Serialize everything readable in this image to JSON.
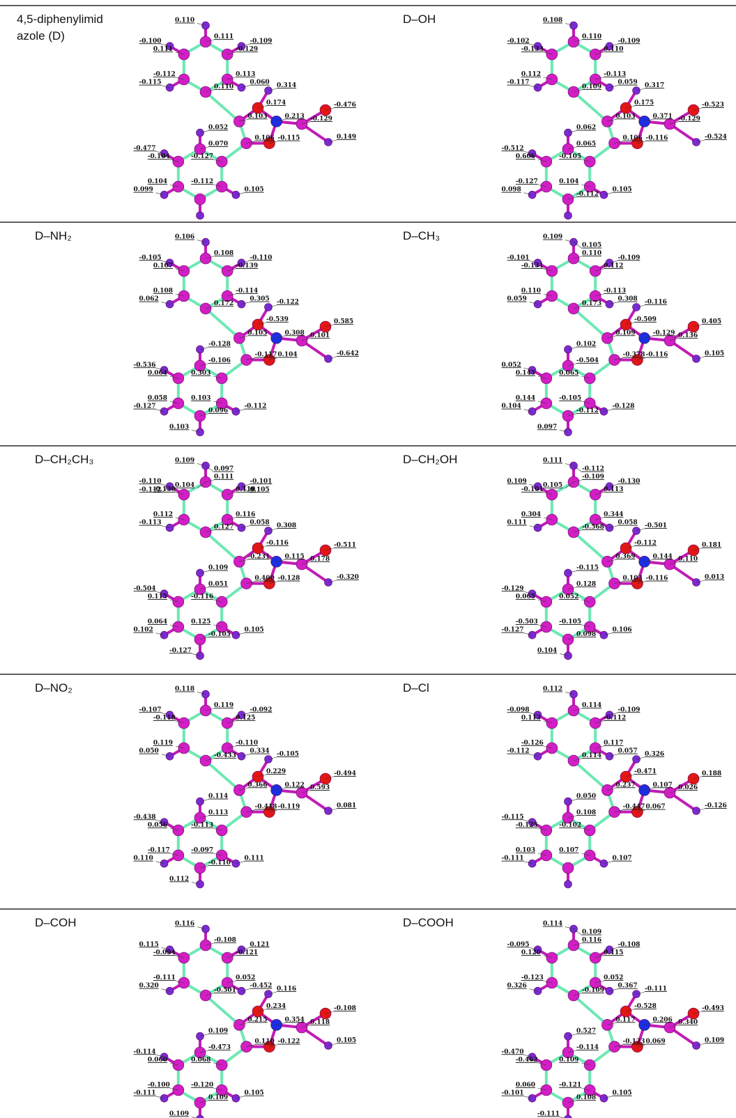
{
  "panels": [
    {
      "title": "4,5-diphenylimidazole (D)",
      "charges": [
        "0.110",
        "0.111",
        "-0.100",
        "-0.109",
        "0.111",
        "-0.129",
        "-0.112",
        "0.113",
        "-0.115",
        "0.060",
        "0.314",
        "0.110",
        "0.174",
        "-0.476",
        "0.103",
        "0.213",
        "-0.129",
        "0.052",
        "0.149",
        "0.106",
        "-0.115",
        "0.070",
        "-0.477",
        "-0.104",
        "-0.127",
        "0.104",
        "-0.112",
        "0.099",
        "0.105"
      ]
    },
    {
      "title": "D–OH",
      "charges": [
        "0.108",
        "0.110",
        "-0.102",
        "-0.109",
        "-0.133",
        "0.110",
        "0.112",
        "-0.113",
        "-0.117",
        "0.059",
        "0.317",
        "0.109",
        "0.175",
        "-0.523",
        "0.103",
        "0.371",
        "-0.129",
        "0.062",
        "-0.524",
        "0.106",
        "-0.116",
        "0.065",
        "-0.512",
        "0.606",
        "-0.105",
        "-0.127",
        "0.104",
        "0.098",
        "0.105",
        "-0.112"
      ]
    },
    {
      "title": "D–NH₂",
      "charges": [
        "0.106",
        "0.108",
        "-0.105",
        "-0.110",
        "0.107",
        "-0.139",
        "0.108",
        "-0.114",
        "0.062",
        "0.305",
        "-0.122",
        "0.172",
        "-0.539",
        "0.585",
        "0.105",
        "0.308",
        "0.101",
        "-0.128",
        "-0.642",
        "-0.117",
        "0.104",
        "-0.106",
        "-0.536",
        "0.064",
        "0.303",
        "0.058",
        "0.103",
        "-0.127",
        "-0.112",
        "0.096",
        "0.103"
      ]
    },
    {
      "title": "D–CH₃",
      "charges": [
        "0.109",
        "0.110",
        "-0.101",
        "-0.109",
        "-0.131",
        "0.112",
        "0.110",
        "-0.113",
        "0.059",
        "0.308",
        "-0.116",
        "0.173",
        "-0.509",
        "0.405",
        "0.109",
        "-0.129",
        "0.136",
        "0.102",
        "0.105",
        "-0.378",
        "-0.116",
        "-0.504",
        "0.052",
        "0.145",
        "0.065",
        "0.144",
        "-0.105",
        "0.104",
        "-0.128",
        "-0.112",
        "0.097",
        "0.105"
      ]
    },
    {
      "title": "D–CH₂CH₃",
      "charges": [
        "0.109",
        "0.111",
        "-0.110",
        "-0.101",
        "-0.130",
        "0.110",
        "0.112",
        "0.116",
        "-0.113",
        "0.058",
        "0.308",
        "0.127",
        "-0.116",
        "-0.511",
        "-0.231",
        "0.115",
        "0.178",
        "0.109",
        "-0.320",
        "0.400",
        "-0.128",
        "0.051",
        "-0.504",
        "0.115",
        "-0.116",
        "0.064",
        "0.125",
        "0.102",
        "0.105",
        "-0.105",
        "-0.127",
        "0.097",
        "0.104",
        "-0.112",
        "0.105"
      ]
    },
    {
      "title": "D–CH₂OH",
      "charges": [
        "0.111",
        "-0.109",
        "0.109",
        "-0.130",
        "-0.101",
        "0.113",
        "0.304",
        "0.344",
        "0.111",
        "0.058",
        "-0.501",
        "-0.568",
        "-0.112",
        "0.181",
        "0.369",
        "0.144",
        "0.110",
        "-0.115",
        "0.013",
        "0.103",
        "-0.116",
        "0.128",
        "-0.129",
        "0.065",
        "0.052",
        "-0.503",
        "-0.105",
        "-0.127",
        "0.106",
        "0.098",
        "0.104",
        "-0.112",
        "0.105"
      ]
    },
    {
      "title": "D–NO₂",
      "charges": [
        "0.118",
        "0.119",
        "-0.107",
        "-0.092",
        "-0.118",
        "0.125",
        "0.119",
        "-0.110",
        "0.050",
        "0.334",
        "-0.105",
        "-0.433",
        "0.229",
        "-0.494",
        "0.366",
        "0.122",
        "0.593",
        "0.114",
        "0.081",
        "-0.418",
        "-0.119",
        "0.113",
        "-0.438",
        "0.056",
        "-0.113",
        "-0.117",
        "-0.097",
        "0.110",
        "0.111",
        "-0.110",
        "0.112"
      ]
    },
    {
      "title": "D–Cl",
      "charges": [
        "0.112",
        "0.114",
        "-0.098",
        "-0.109",
        "0.113",
        "-0.112",
        "-0.126",
        "0.117",
        "-0.112",
        "0.057",
        "0.326",
        "0.114",
        "-0.471",
        "0.188",
        "0.237",
        "0.107",
        "0.026",
        "0.050",
        "-0.126",
        "-0.447",
        "0.067",
        "0.108",
        "-0.115",
        "-0.125",
        "-0.102",
        "0.103",
        "0.107",
        "-0.111",
        "0.107"
      ]
    },
    {
      "title": "D–COH",
      "charges": [
        "0.116",
        "-0.108",
        "0.115",
        "0.121",
        "-0.094",
        "-0.121",
        "-0.111",
        "0.052",
        "0.320",
        "-0.452",
        "0.116",
        "-0.501",
        "0.234",
        "-0.108",
        "0.215",
        "0.354",
        "0.118",
        "0.109",
        "0.105",
        "0.110",
        "-0.122",
        "-0.473",
        "-0.114",
        "0.060",
        "0.068",
        "-0.100",
        "-0.120",
        "-0.111",
        "0.105",
        "0.109",
        "0.109"
      ]
    },
    {
      "title": "D–COOH",
      "charges": [
        "0.114",
        "0.116",
        "-0.095",
        "-0.108",
        "0.120",
        "0.115",
        "-0.123",
        "0.052",
        "0.326",
        "0.367",
        "-0.111",
        "-0.109",
        "-0.528",
        "-0.493",
        "0.117",
        "0.206",
        "0.340",
        "0.527",
        "0.109",
        "-0.123",
        "0.069",
        "-0.114",
        "-0.470",
        "-0.462",
        "0.109",
        "0.060",
        "-0.121",
        "-0.101",
        "0.105",
        "0.108",
        "-0.111",
        "0.109"
      ]
    }
  ]
}
